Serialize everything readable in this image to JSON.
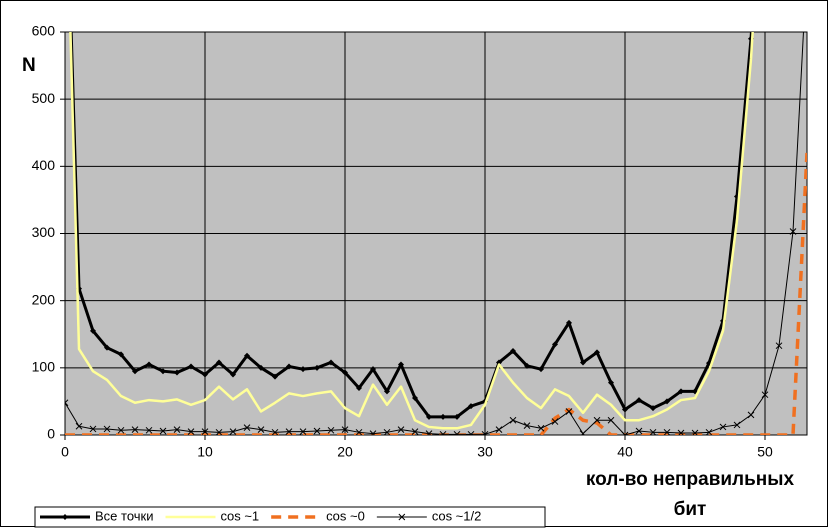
{
  "chart_data": {
    "type": "line",
    "y_label": "N",
    "x_label": [
      "кол-во неправильных",
      "бит"
    ],
    "x": [
      0,
      1,
      2,
      3,
      4,
      5,
      6,
      7,
      8,
      9,
      10,
      11,
      12,
      13,
      14,
      15,
      16,
      17,
      18,
      19,
      20,
      21,
      22,
      23,
      24,
      25,
      26,
      27,
      28,
      29,
      30,
      31,
      32,
      33,
      34,
      35,
      36,
      37,
      38,
      39,
      40,
      41,
      42,
      43,
      44,
      45,
      46,
      47,
      48,
      49,
      50,
      51,
      52,
      53
    ],
    "xlim": [
      0,
      53
    ],
    "xticks": [
      0,
      10,
      20,
      30,
      40,
      50
    ],
    "ylim": [
      0,
      600
    ],
    "yticks": [
      0,
      100,
      200,
      300,
      400,
      500,
      600
    ],
    "grid": true,
    "legend": "bottom-left",
    "series": [
      {
        "name": "Все точки",
        "color": "#000000",
        "marker": "diamond",
        "values": [
          900,
          218,
          155,
          130,
          120,
          95,
          105,
          95,
          93,
          102,
          90,
          108,
          90,
          118,
          100,
          87,
          102,
          98,
          100,
          108,
          93,
          70,
          98,
          65,
          105,
          55,
          27,
          27,
          27,
          43,
          50,
          108,
          125,
          103,
          98,
          135,
          167,
          108,
          123,
          78,
          38,
          52,
          40,
          50,
          65,
          65,
          107,
          170,
          355,
          590,
          900,
          null,
          null,
          null
        ]
      },
      {
        "name": "cos ~1",
        "color": "#ffff99",
        "marker": "none",
        "values": [
          900,
          128,
          95,
          82,
          58,
          48,
          52,
          50,
          53,
          45,
          52,
          72,
          53,
          68,
          35,
          48,
          62,
          58,
          62,
          65,
          40,
          28,
          75,
          45,
          72,
          22,
          12,
          10,
          10,
          15,
          45,
          105,
          78,
          55,
          40,
          68,
          58,
          33,
          60,
          45,
          22,
          22,
          28,
          38,
          52,
          55,
          95,
          155,
          320,
          560,
          900,
          null,
          null,
          null
        ]
      },
      {
        "name": "cos ~0",
        "color": "#f07020",
        "marker": "none",
        "values": [
          0,
          0,
          0,
          0,
          0,
          0,
          0,
          0,
          0,
          0,
          0,
          0,
          0,
          0,
          0,
          0,
          0,
          0,
          0,
          0,
          0,
          0,
          0,
          0,
          0,
          0,
          0,
          0,
          0,
          0,
          0,
          0,
          0,
          0,
          0,
          25,
          38,
          22,
          18,
          0,
          0,
          0,
          0,
          0,
          0,
          0,
          0,
          0,
          0,
          0,
          0,
          0,
          0,
          420
        ]
      },
      {
        "name": "cos ~1/2",
        "color": "#000000",
        "marker": "x",
        "values": [
          48,
          13,
          9,
          9,
          7,
          8,
          7,
          6,
          8,
          5,
          5,
          4,
          5,
          11,
          8,
          4,
          5,
          5,
          6,
          7,
          8,
          4,
          2,
          4,
          8,
          5,
          2,
          1,
          1,
          1,
          1,
          8,
          22,
          14,
          10,
          20,
          35,
          2,
          22,
          22,
          0,
          6,
          4,
          4,
          3,
          3,
          4,
          12,
          15,
          30,
          60,
          133,
          303,
          700
        ]
      }
    ]
  }
}
